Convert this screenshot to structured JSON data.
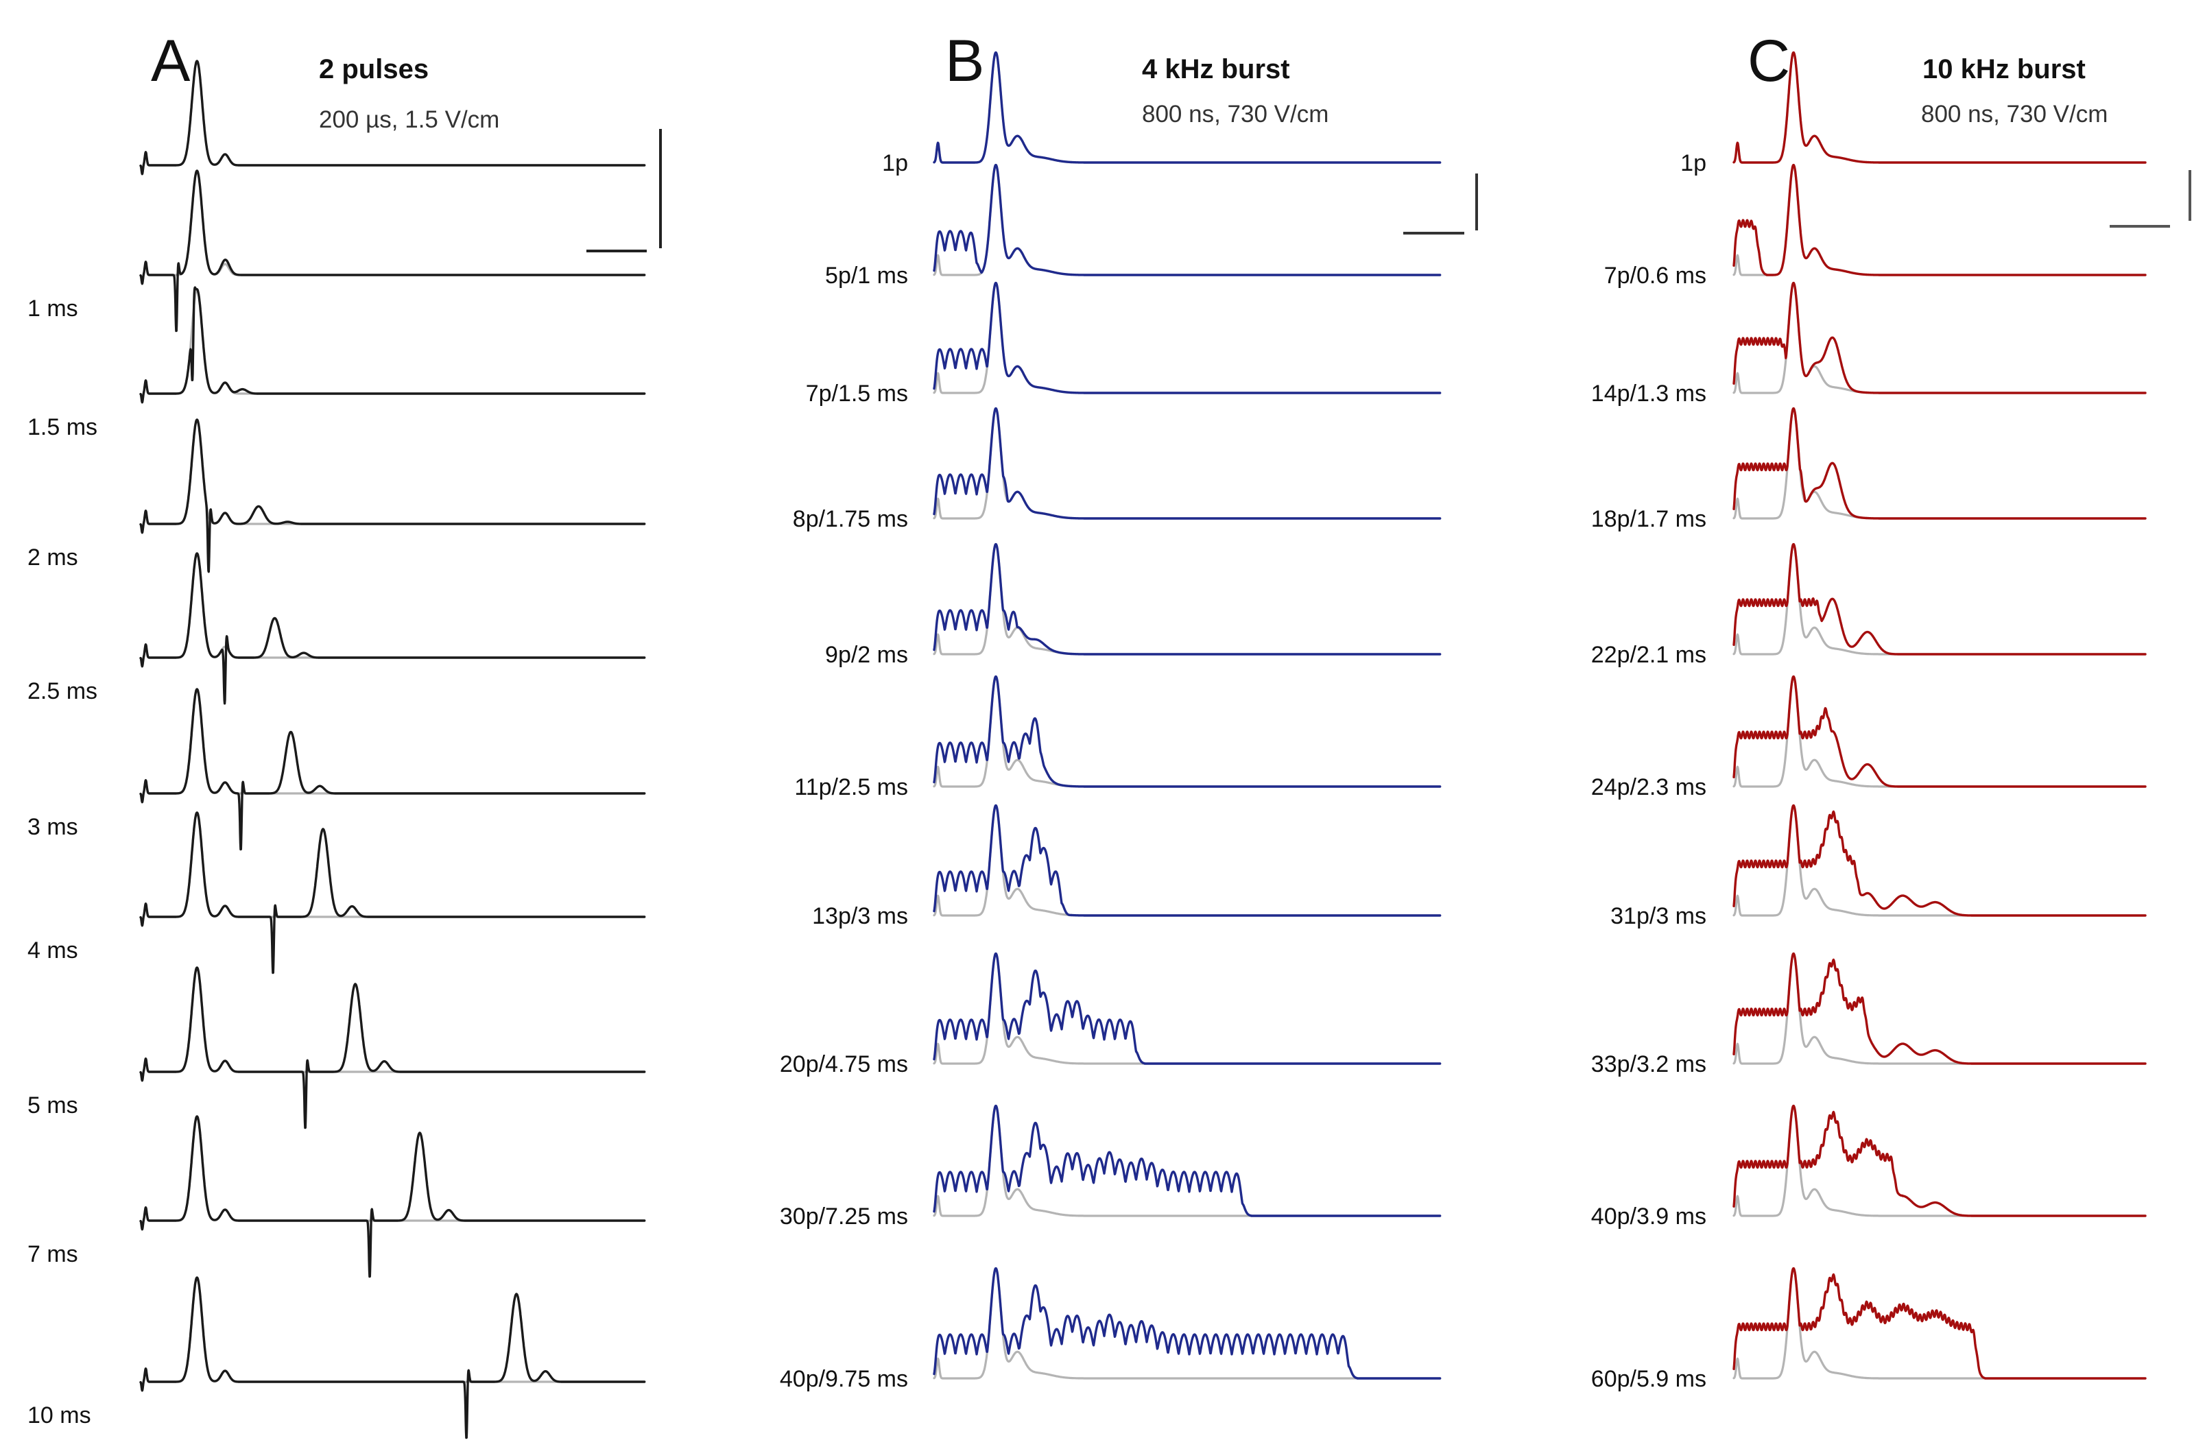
{
  "chart_data": [
    {
      "type": "line",
      "panel": "A",
      "title": "2 pulses",
      "subtitle": "200 µs, 1.5 V/cm",
      "trace_color": "#1a1a1a",
      "reference_color": "#b4b4b4",
      "rows": [
        {
          "label": "",
          "stim": "pair",
          "delay_ms": 0
        },
        {
          "label": "1 ms",
          "stim": "pair",
          "delay_ms": 1
        },
        {
          "label": "1.5 ms",
          "stim": "pair",
          "delay_ms": 1.5
        },
        {
          "label": "2 ms",
          "stim": "pair",
          "delay_ms": 2
        },
        {
          "label": "2.5 ms",
          "stim": "pair",
          "delay_ms": 2.5
        },
        {
          "label": "3 ms",
          "stim": "pair",
          "delay_ms": 3
        },
        {
          "label": "4 ms",
          "stim": "pair",
          "delay_ms": 4
        },
        {
          "label": "5 ms",
          "stim": "pair",
          "delay_ms": 5
        },
        {
          "label": "7 ms",
          "stim": "pair",
          "delay_ms": 7
        },
        {
          "label": "10 ms",
          "stim": "pair",
          "delay_ms": 10
        }
      ]
    },
    {
      "type": "line",
      "panel": "B",
      "title": "4 kHz burst",
      "subtitle": "800 ns, 730 V/cm",
      "trace_color": "#1f2a8c",
      "reference_color": "#b4b4b4",
      "rows": [
        {
          "label": "1p",
          "pulses": 1,
          "duration_ms": 0
        },
        {
          "label": "5p/1 ms",
          "pulses": 5,
          "duration_ms": 1
        },
        {
          "label": "7p/1.5 ms",
          "pulses": 7,
          "duration_ms": 1.5
        },
        {
          "label": "8p/1.75 ms",
          "pulses": 8,
          "duration_ms": 1.75
        },
        {
          "label": "9p/2 ms",
          "pulses": 9,
          "duration_ms": 2
        },
        {
          "label": "11p/2.5 ms",
          "pulses": 11,
          "duration_ms": 2.5
        },
        {
          "label": "13p/3 ms",
          "pulses": 13,
          "duration_ms": 3
        },
        {
          "label": "20p/4.75 ms",
          "pulses": 20,
          "duration_ms": 4.75
        },
        {
          "label": "30p/7.25 ms",
          "pulses": 30,
          "duration_ms": 7.25
        },
        {
          "label": "40p/9.75 ms",
          "pulses": 40,
          "duration_ms": 9.75
        }
      ]
    },
    {
      "type": "line",
      "panel": "C",
      "title": "10 kHz burst",
      "subtitle": "800 ns, 730 V/cm",
      "trace_color": "#a50e0e",
      "reference_color": "#b4b4b4",
      "rows": [
        {
          "label": "1p",
          "pulses": 1,
          "duration_ms": 0
        },
        {
          "label": "7p/0.6 ms",
          "pulses": 7,
          "duration_ms": 0.6
        },
        {
          "label": "14p/1.3 ms",
          "pulses": 14,
          "duration_ms": 1.3
        },
        {
          "label": "18p/1.7 ms",
          "pulses": 18,
          "duration_ms": 1.7
        },
        {
          "label": "22p/2.1 ms",
          "pulses": 22,
          "duration_ms": 2.1
        },
        {
          "label": "24p/2.3 ms",
          "pulses": 24,
          "duration_ms": 2.3
        },
        {
          "label": "31p/3 ms",
          "pulses": 31,
          "duration_ms": 3
        },
        {
          "label": "33p/3.2 ms",
          "pulses": 33,
          "duration_ms": 3.2
        },
        {
          "label": "40p/3.9 ms",
          "pulses": 40,
          "duration_ms": 3.9
        },
        {
          "label": "60p/5.9 ms",
          "pulses": 60,
          "duration_ms": 5.9
        }
      ]
    }
  ]
}
